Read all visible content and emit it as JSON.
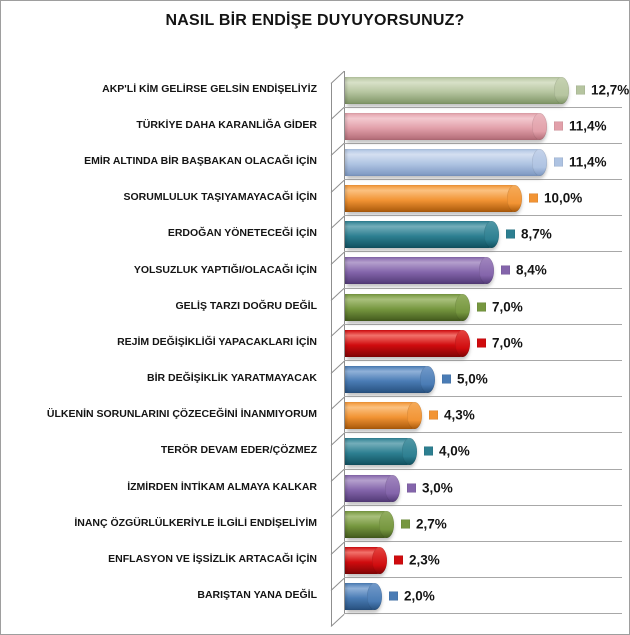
{
  "title": "NASIL BİR ENDİŞE DUYUYORSUNUZ?",
  "chart_data": {
    "type": "bar",
    "orientation": "horizontal",
    "style": "3d-cylinder",
    "title": "NASIL BİR ENDİŞE DUYUYORSUNUZ?",
    "unit": "%",
    "xlim": [
      0,
      13
    ],
    "grid": "horizontal-row-separators",
    "legend_position": "none",
    "value_labels_position": "end-of-bar-with-color-marker",
    "categories": [
      "AKP'Lİ KİM GELİRSE GELSİN ENDİŞELİYİZ",
      "TÜRKİYE DAHA KARANLİĞA GİDER",
      "EMİR ALTINDA BİR BAŞBAKAN OLACAĞI İÇİN",
      "SORUMLULUK TAŞIYAMAYACAĞI İÇİN",
      "ERDOĞAN YÖNETECEĞİ İÇİN",
      "YOLSUZLUK YAPTIĞI/OLACAĞI İÇİN",
      "GELİŞ TARZI DOĞRU DEĞİL",
      "REJİM DEĞİŞİKLİĞİ YAPACAKLARI İÇİN",
      "BİR DEĞİŞİKLİK YARATMAYACAK",
      "ÜLKENİN SORUNLARINI ÇÖZECEĞİNİ İNANMIYORUM",
      "TERÖR DEVAM EDER/ÇÖZMEZ",
      "İZMİRDEN İNTİKAM ALMAYA KALKAR",
      "İNANÇ ÖZGÜRLÜLKERİYLE  İLGİLİ ENDİŞELİYİM",
      "ENFLASYON VE İŞSİZLİK ARTACAĞI İÇİN",
      "BARIŞTAN YANA DEĞİL"
    ],
    "values": [
      12.7,
      11.4,
      11.4,
      10.0,
      8.7,
      8.4,
      7.0,
      7.0,
      5.0,
      4.3,
      4.0,
      3.0,
      2.7,
      2.3,
      2.0
    ],
    "value_labels": [
      "12,7%",
      "11,4%",
      "11,4%",
      "10,0%",
      "8,7%",
      "8,4%",
      "7,0%",
      "7,0%",
      "5,0%",
      "4,3%",
      "4,0%",
      "3,0%",
      "2,7%",
      "2,3%",
      "2,0%"
    ],
    "bar_colors": [
      {
        "hi": "#d8e1c8",
        "mid": "#b6c5a0",
        "dark": "#7e9465",
        "cap": "#c6d2b1"
      },
      {
        "hi": "#f3c9cf",
        "mid": "#e2a0aa",
        "dark": "#b16b76",
        "cap": "#eab7be"
      },
      {
        "hi": "#d4dff1",
        "mid": "#aec3e2",
        "dark": "#7b96c0",
        "cap": "#c5d3eb"
      },
      {
        "hi": "#fbc180",
        "mid": "#f29434",
        "dark": "#a9590a",
        "cap": "#f6ab59"
      },
      {
        "hi": "#74aeba",
        "mid": "#2d7f91",
        "dark": "#11505f",
        "cap": "#5198a6"
      },
      {
        "hi": "#b5a0cd",
        "mid": "#8465ab",
        "dark": "#523a76",
        "cap": "#a287bf"
      },
      {
        "hi": "#a9c07c",
        "mid": "#76973f",
        "dark": "#435a1d",
        "cap": "#93ae60"
      },
      {
        "hi": "#f2726b",
        "mid": "#d00b0e",
        "dark": "#800405",
        "cap": "#e64540"
      },
      {
        "hi": "#90b1d8",
        "mid": "#4a7cb5",
        "dark": "#27507e",
        "cap": "#729aca"
      },
      {
        "hi": "#fbc180",
        "mid": "#f29434",
        "dark": "#a9590a",
        "cap": "#f6ab59"
      },
      {
        "hi": "#74aeba",
        "mid": "#2d7f91",
        "dark": "#11505f",
        "cap": "#5198a6"
      },
      {
        "hi": "#b5a0cd",
        "mid": "#8465ab",
        "dark": "#523a76",
        "cap": "#a287bf"
      },
      {
        "hi": "#a9c07c",
        "mid": "#76973f",
        "dark": "#435a1d",
        "cap": "#93ae60"
      },
      {
        "hi": "#f2726b",
        "mid": "#d00b0e",
        "dark": "#800405",
        "cap": "#e64540"
      },
      {
        "hi": "#90b1d8",
        "mid": "#4a7cb5",
        "dark": "#27507e",
        "cap": "#729aca"
      }
    ],
    "axis_color": "#8f8f8f",
    "separator_color": "#a8a8a8"
  }
}
